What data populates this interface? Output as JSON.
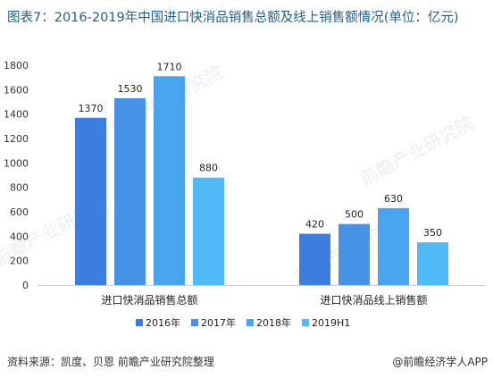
{
  "title": "图表7：2016-2019年中国进口快消品销售总额及线上销售额情况(单位：亿元)",
  "source": "资料来源：凯度、贝恩 前瞻产业研究院整理",
  "credit": "@前瞻经济学人APP",
  "watermark": "前瞻产业研究院",
  "chart_data": {
    "type": "bar",
    "title": "图表7：2016-2019年中国进口快消品销售总额及线上销售额情况(单位：亿元)",
    "categories": [
      "进口快消品销售总额",
      "进口快消品线上销售额"
    ],
    "series": [
      {
        "name": "2016年",
        "values": [
          1370,
          420
        ],
        "color": "#3d7de0"
      },
      {
        "name": "2017年",
        "values": [
          1530,
          500
        ],
        "color": "#4592e6"
      },
      {
        "name": "2018年",
        "values": [
          1710,
          630
        ],
        "color": "#48a4ee"
      },
      {
        "name": "2019H1",
        "values": [
          880,
          350
        ],
        "color": "#4fbaf5"
      }
    ],
    "ylim": [
      0,
      1800
    ],
    "yticks": [
      0,
      200,
      400,
      600,
      800,
      1000,
      1200,
      1400,
      1600,
      1800
    ],
    "grid": false,
    "legend": "bottom",
    "xlabel": "",
    "ylabel": ""
  }
}
